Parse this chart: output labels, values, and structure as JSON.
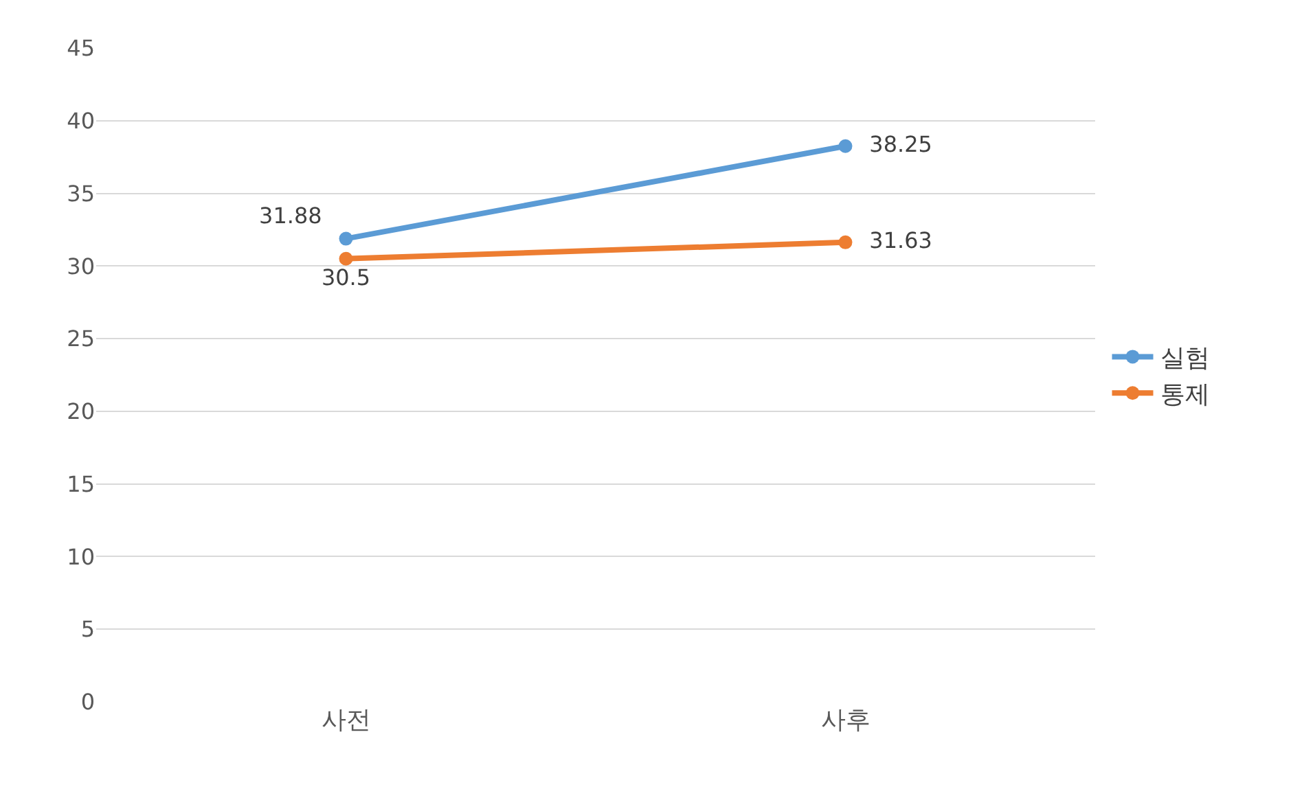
{
  "chart_data": {
    "type": "line",
    "categories": [
      "사전",
      "사후"
    ],
    "series": [
      {
        "name": "실험",
        "color": "#5b9bd5",
        "values": [
          31.88,
          38.25
        ]
      },
      {
        "name": "통제",
        "color": "#ed7d31",
        "values": [
          30.5,
          31.63
        ]
      }
    ],
    "ylim": [
      0,
      45
    ],
    "yticks": [
      0,
      5,
      10,
      15,
      20,
      25,
      30,
      35,
      40,
      45
    ],
    "grid": "y",
    "legend": "right",
    "marker": "circle",
    "line_style": "solid",
    "data_labels": true
  }
}
